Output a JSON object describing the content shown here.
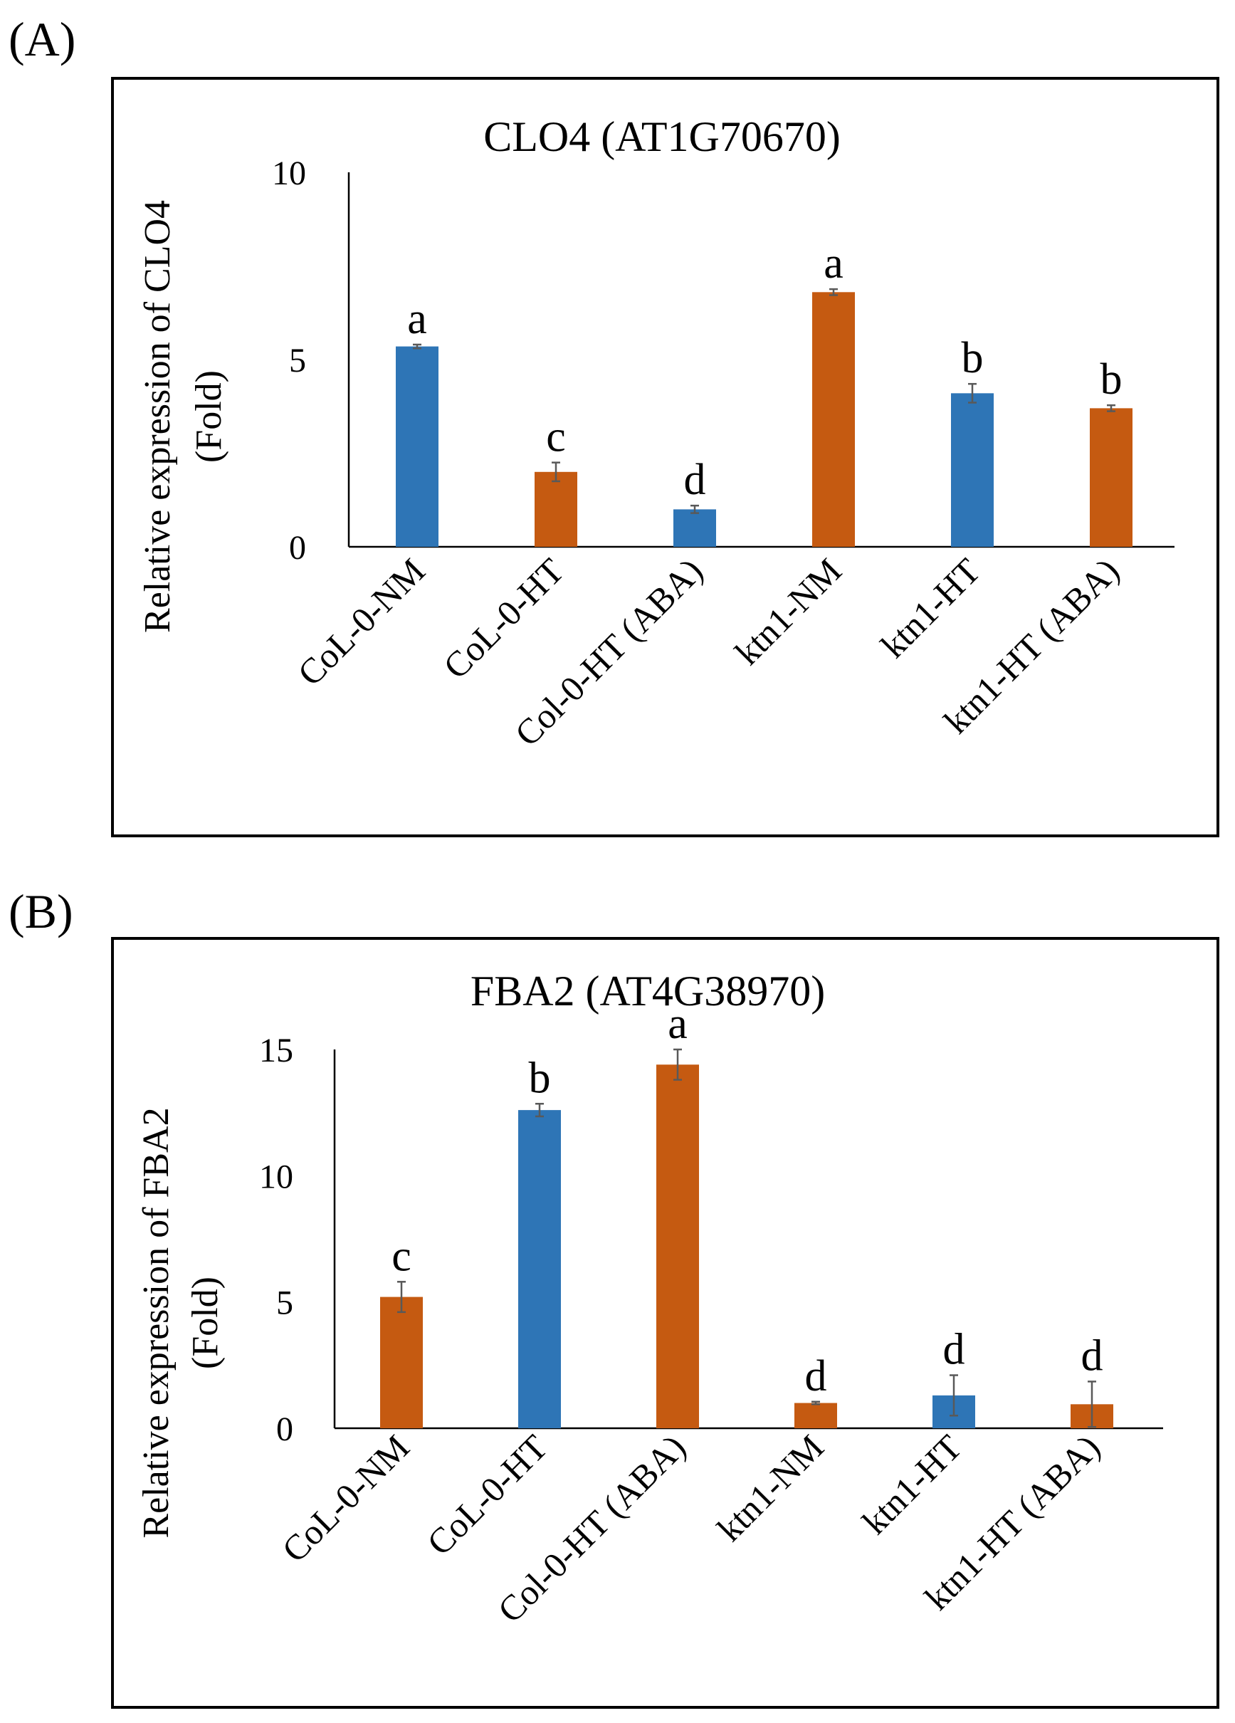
{
  "colors": {
    "blue": "#2e75b6",
    "orange": "#c55a11",
    "axis": "#000000",
    "error_bar": "#595959"
  },
  "chart_data": [
    {
      "panel_label": "(A)",
      "type": "bar",
      "title": "CLO4 (AT1G70670)",
      "ylabel_line1": "Relative expression of CLO4",
      "ylabel_line2": "(Fold)",
      "xlabel": "",
      "ylim": [
        0,
        10
      ],
      "yticks": [
        0,
        5,
        10
      ],
      "grid": false,
      "categories": [
        "CoL-0-NM",
        "CoL-0-HT",
        "Col-0-HT (ABA)",
        "ktn1-NM",
        "ktn1-HT",
        "ktn1-HT (ABA)"
      ],
      "values": [
        5.35,
        2.0,
        1.0,
        6.8,
        4.1,
        3.7
      ],
      "errors": [
        0.05,
        0.25,
        0.1,
        0.08,
        0.25,
        0.08
      ],
      "bar_colors": [
        "blue",
        "orange",
        "blue",
        "orange",
        "blue",
        "orange"
      ],
      "significance_letters": [
        "a",
        "c",
        "d",
        "a",
        "b",
        "b"
      ]
    },
    {
      "panel_label": "(B)",
      "type": "bar",
      "title": "FBA2 (AT4G38970)",
      "ylabel_line1": "Relative expression of FBA2",
      "ylabel_line2": "(Fold)",
      "xlabel": "",
      "ylim": [
        0,
        15
      ],
      "yticks": [
        0,
        5,
        10,
        15
      ],
      "grid": false,
      "categories": [
        "CoL-0-NM",
        "CoL-0-HT",
        "Col-0-HT (ABA)",
        "ktn1-NM",
        "ktn1-HT",
        "ktn1-HT (ABA)"
      ],
      "values": [
        5.2,
        12.6,
        14.4,
        1.0,
        1.3,
        0.95
      ],
      "errors": [
        0.6,
        0.25,
        0.6,
        0.05,
        0.8,
        0.9
      ],
      "bar_colors": [
        "orange",
        "blue",
        "orange",
        "orange",
        "blue",
        "orange"
      ],
      "significance_letters": [
        "c",
        "b",
        "a",
        "d",
        "d",
        "d"
      ]
    }
  ]
}
